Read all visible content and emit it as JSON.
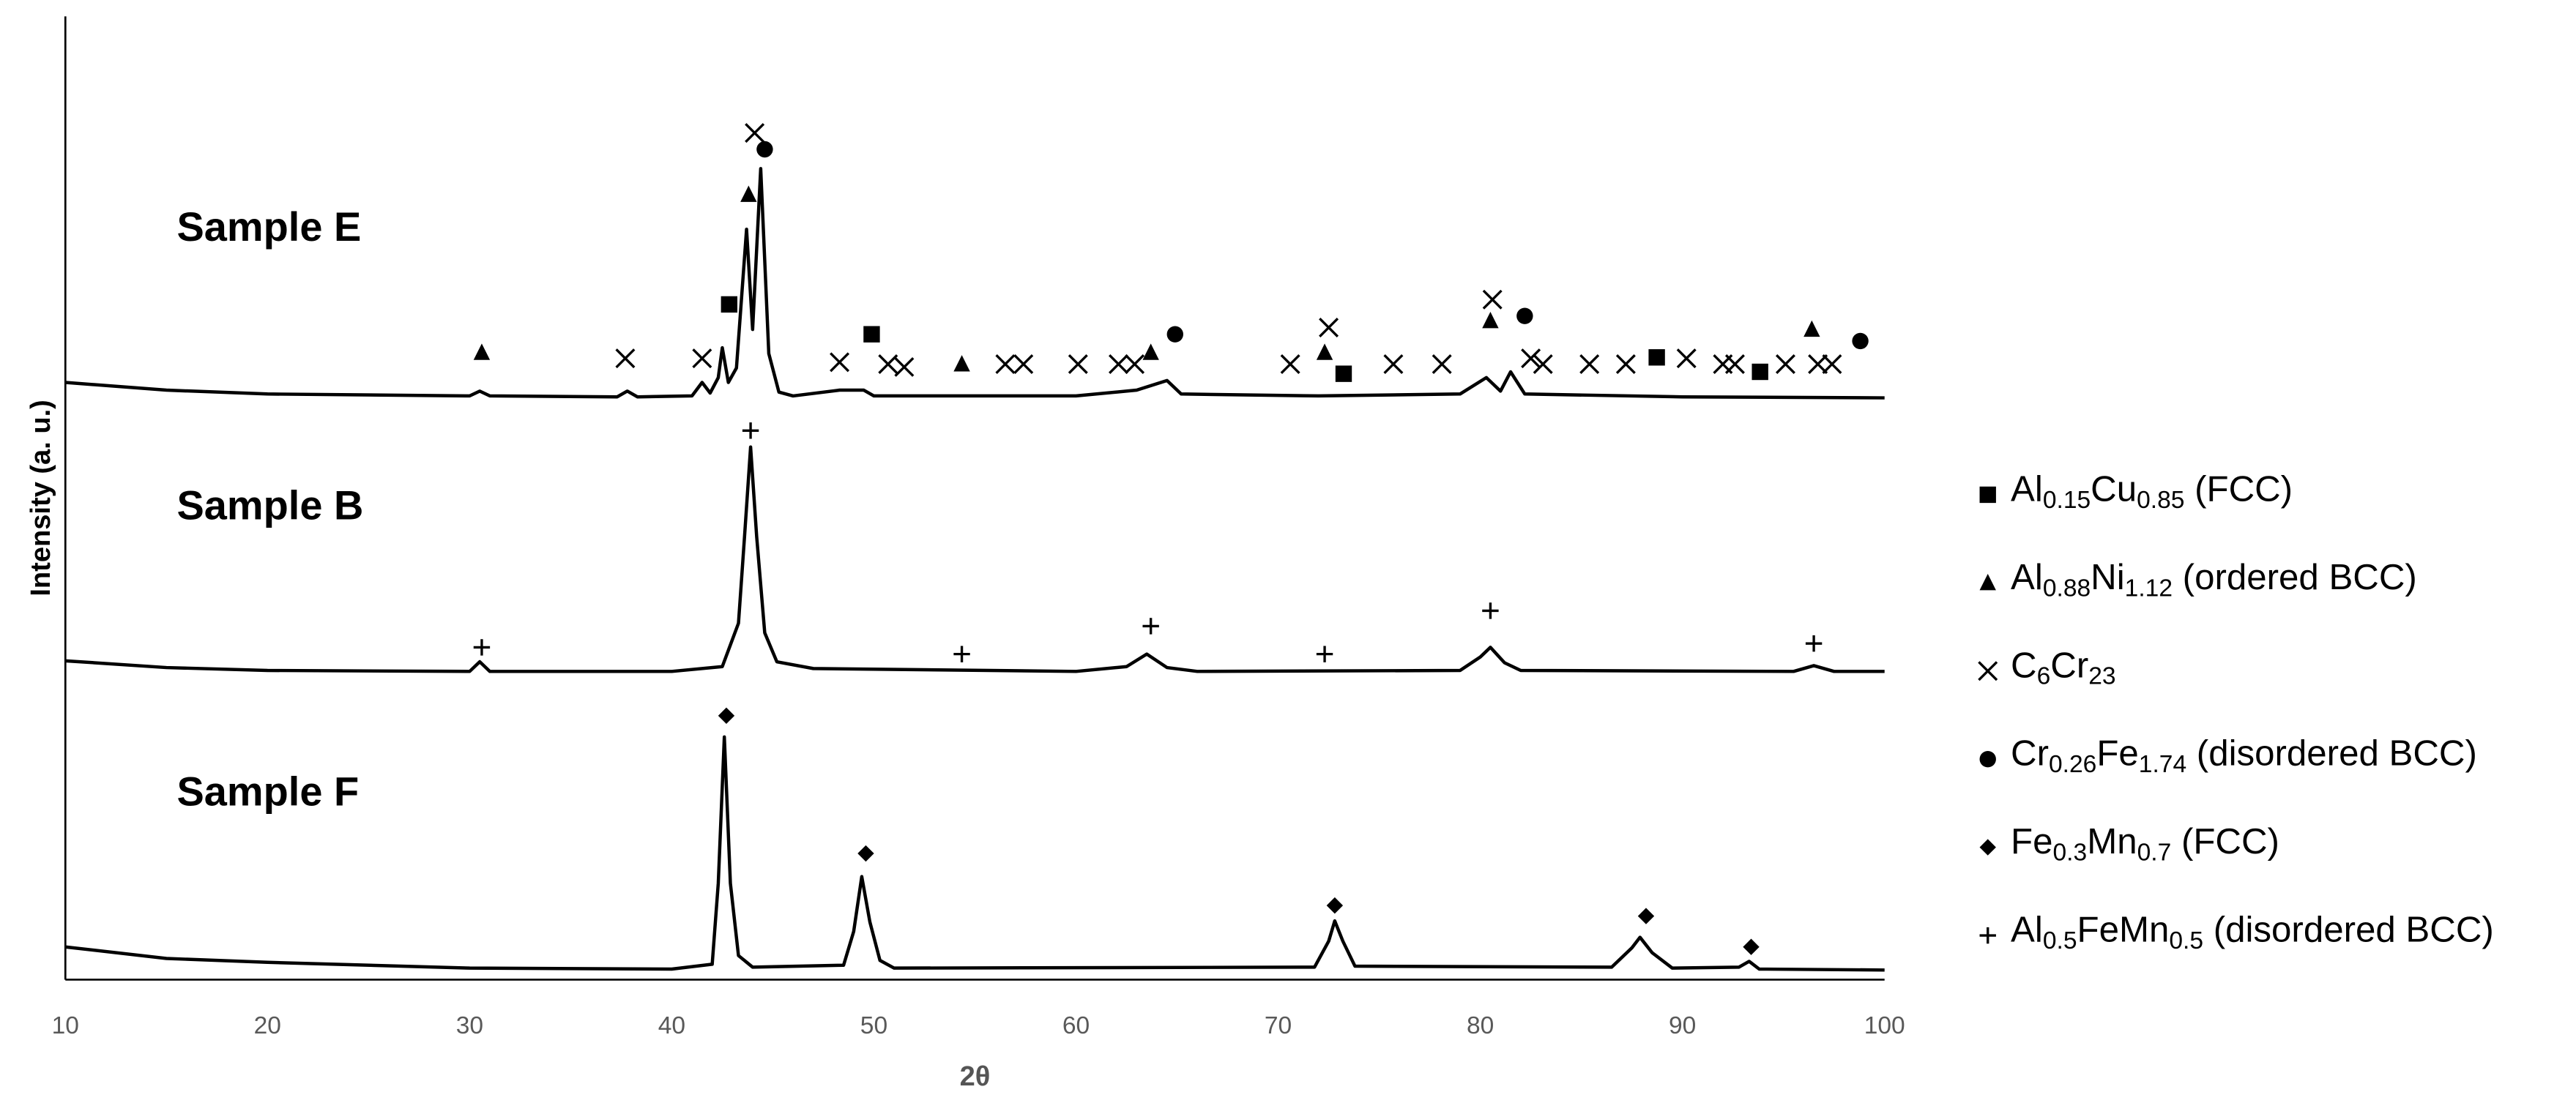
{
  "chart_data": {
    "type": "line",
    "x_label": "2θ",
    "y_label": "Intensity (a. u.)",
    "xlim": [
      10,
      100
    ],
    "xticks": [
      10,
      20,
      30,
      40,
      50,
      60,
      70,
      80,
      90,
      100
    ],
    "ylim": [
      0,
      100
    ],
    "grid": false,
    "legend": "right",
    "series": [
      {
        "name": "Sample E",
        "color": "#000000",
        "x": [
          10,
          15,
          20,
          30,
          30.5,
          31,
          37.3,
          37.8,
          38.3,
          41,
          41.5,
          41.9,
          42.3,
          42.5,
          42.8,
          43.2,
          43.7,
          44.0,
          44.4,
          44.8,
          45.3,
          46,
          48.3,
          49.5,
          50,
          60,
          63,
          64.5,
          65.2,
          72,
          79,
          80.3,
          81,
          81.5,
          82.2,
          90,
          100
        ],
        "values": [
          62.0,
          61.2,
          60.8,
          60.6,
          61.1,
          60.6,
          60.5,
          61.1,
          60.5,
          60.6,
          62.0,
          60.9,
          62.5,
          65.6,
          62.0,
          63.5,
          77.9,
          67.5,
          84.2,
          65.0,
          61.0,
          60.6,
          61.2,
          61.2,
          60.6,
          60.6,
          61.2,
          62.2,
          60.8,
          60.6,
          60.8,
          62.5,
          61.1,
          63.1,
          60.8,
          60.5,
          60.4
        ]
      },
      {
        "name": "Sample B",
        "color": "#000000",
        "x": [
          10,
          15,
          20,
          30,
          30.5,
          31,
          40,
          42.5,
          43.3,
          43.6,
          43.9,
          44.2,
          44.6,
          45.2,
          47,
          60,
          62.5,
          63.5,
          64.5,
          66,
          79,
          80,
          80.5,
          81.2,
          82,
          95.5,
          96.5,
          97.5,
          100
        ],
        "values": [
          33.1,
          32.4,
          32.1,
          32.0,
          33.0,
          32.0,
          32.0,
          32.5,
          37,
          46,
          55.3,
          46,
          36,
          33,
          32.3,
          32.0,
          32.5,
          33.8,
          32.4,
          32.0,
          32.1,
          33.5,
          34.5,
          32.9,
          32.1,
          32.0,
          32.6,
          32.0,
          32.0
        ]
      },
      {
        "name": "Sample F",
        "color": "#000000",
        "x": [
          10,
          15,
          20,
          30,
          40,
          42,
          42.3,
          42.6,
          42.9,
          43.3,
          44,
          48.5,
          49,
          49.4,
          49.8,
          50.3,
          51,
          71.8,
          72.5,
          72.8,
          73.2,
          73.8,
          86.5,
          87.5,
          87.9,
          88.5,
          89.5,
          92.8,
          93.3,
          93.8,
          100
        ],
        "values": [
          3.4,
          2.2,
          1.8,
          1.2,
          1.1,
          1.6,
          10,
          25.2,
          10,
          2.5,
          1.3,
          1.5,
          5,
          10.7,
          6,
          2.0,
          1.2,
          1.3,
          4,
          6.1,
          4,
          1.4,
          1.3,
          3.3,
          4.4,
          2.8,
          1.2,
          1.3,
          1.9,
          1.1,
          1.0
        ]
      }
    ],
    "markers": [
      {
        "name": "Al0.15Cu0.85 (FCC)",
        "symbol": "square",
        "x": [
          42.84,
          49.89,
          73.24,
          88.73,
          93.84
        ],
        "y": [
          70.1,
          67.0,
          62.9,
          64.6,
          63.1
        ]
      },
      {
        "name": "Al0.88Ni1.12 (ordered BCC)",
        "symbol": "triangle",
        "x": [
          30.6,
          43.8,
          54.35,
          63.7,
          72.3,
          80.5,
          96.4
        ],
        "y": [
          65.1,
          81.5,
          63.9,
          65.1,
          65.1,
          68.4,
          67.5
        ]
      },
      {
        "name": "C6Cr23",
        "symbol": "cross",
        "x": [
          44.1,
          37.7,
          41.5,
          48.3,
          50.7,
          51.5,
          56.5,
          57.4,
          60.1,
          62.1,
          62.9,
          70.6,
          72.5,
          75.7,
          78.1,
          80.6,
          82.5,
          83.1,
          85.4,
          87.2,
          90.2,
          92.0,
          92.6,
          95.1,
          96.7,
          97.4
        ],
        "y": [
          87.9,
          64.5,
          64.5,
          64.1,
          63.9,
          63.6,
          63.9,
          63.9,
          63.9,
          63.9,
          63.9,
          63.9,
          67.7,
          63.9,
          63.9,
          70.6,
          64.5,
          63.9,
          63.9,
          63.9,
          64.5,
          63.9,
          63.9,
          63.9,
          63.9,
          63.9
        ]
      },
      {
        "name": "Cr0.26Fe1.74 (disordered BCC)",
        "symbol": "circle",
        "x": [
          44.6,
          64.9,
          82.2,
          98.8
        ],
        "y": [
          86.2,
          67.0,
          68.9,
          66.3
        ]
      },
      {
        "name": "Fe0.3Mn0.7 (FCC)",
        "symbol": "diamond",
        "x": [
          42.7,
          49.6,
          72.8,
          88.2,
          93.4
        ],
        "y": [
          27.4,
          13.1,
          7.7,
          6.6,
          3.4
        ]
      },
      {
        "name": "Al0.5FeMn0.5 (disordered BCC)",
        "symbol": "plus",
        "x": [
          43.9,
          30.6,
          54.35,
          63.7,
          72.3,
          80.5,
          96.5
        ],
        "y": [
          57.0,
          34.5,
          33.8,
          36.7,
          33.8,
          38.3,
          34.9
        ]
      }
    ]
  }
}
